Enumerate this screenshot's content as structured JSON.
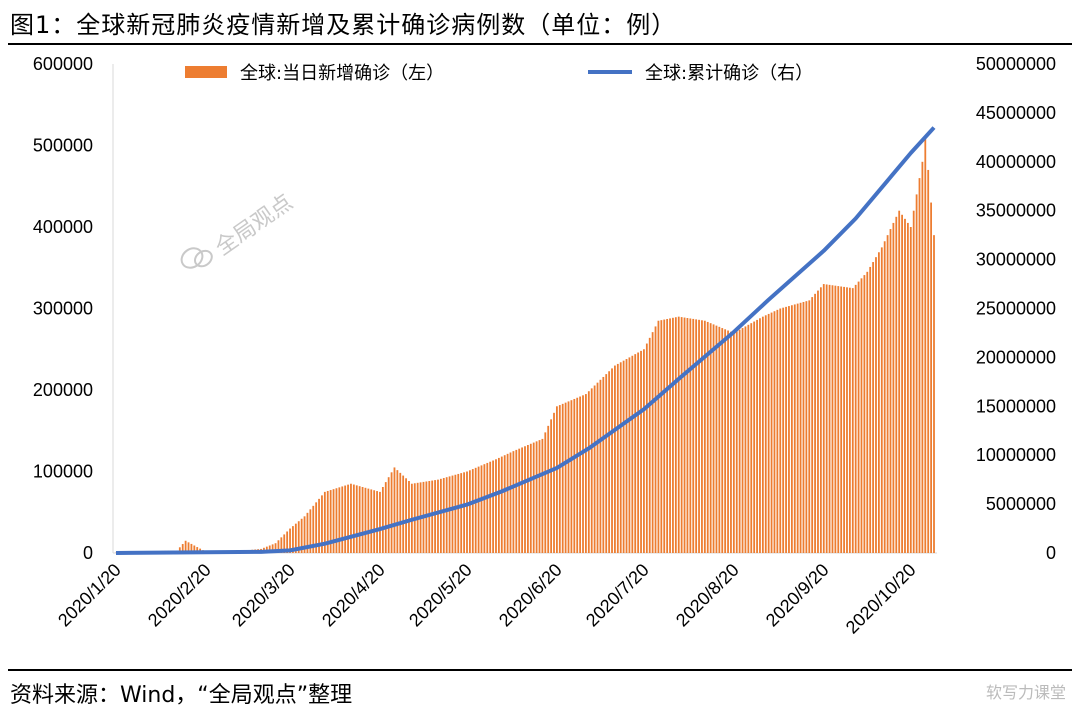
{
  "title": "图1：全球新冠肺炎疫情新增及累计确诊病例数（单位：例）",
  "source": "资料来源：Wind，“全局观点”整理",
  "watermark_center": "全局观点",
  "watermark_corner": "软写力课堂",
  "chart_data": {
    "type": "bar+line",
    "x_tick_labels": [
      "2020/1/20",
      "2020/2/20",
      "2020/3/20",
      "2020/4/20",
      "2020/5/20",
      "2020/6/20",
      "2020/7/20",
      "2020/8/20",
      "2020/9/20",
      "2020/10/20"
    ],
    "y_left": {
      "min": 0,
      "max": 600000,
      "ticks": [
        "0",
        "100000",
        "200000",
        "300000",
        "400000",
        "500000",
        "600000"
      ]
    },
    "y_right": {
      "min": 0,
      "max": 50000000,
      "ticks": [
        "0",
        "5000000",
        "10000000",
        "15000000",
        "20000000",
        "25000000",
        "30000000",
        "35000000",
        "40000000",
        "45000000",
        "50000000"
      ]
    },
    "x_range": [
      "2020-01-20",
      "2020-10-28"
    ],
    "series": [
      {
        "name": "全球:当日新增确诊（左）",
        "axis": "left",
        "kind": "bar",
        "color": "#ED7D31",
        "points": [
          [
            "2020-01-20",
            300
          ],
          [
            "2020-01-30",
            2000
          ],
          [
            "2020-02-10",
            3000
          ],
          [
            "2020-02-13",
            15000
          ],
          [
            "2020-02-20",
            1500
          ],
          [
            "2020-03-01",
            2000
          ],
          [
            "2020-03-10",
            5000
          ],
          [
            "2020-03-15",
            12000
          ],
          [
            "2020-03-20",
            30000
          ],
          [
            "2020-03-25",
            45000
          ],
          [
            "2020-04-01",
            75000
          ],
          [
            "2020-04-10",
            85000
          ],
          [
            "2020-04-20",
            75000
          ],
          [
            "2020-04-25",
            105000
          ],
          [
            "2020-05-01",
            85000
          ],
          [
            "2020-05-10",
            90000
          ],
          [
            "2020-05-20",
            100000
          ],
          [
            "2020-05-30",
            115000
          ],
          [
            "2020-06-05",
            125000
          ],
          [
            "2020-06-15",
            140000
          ],
          [
            "2020-06-20",
            180000
          ],
          [
            "2020-06-30",
            195000
          ],
          [
            "2020-07-10",
            230000
          ],
          [
            "2020-07-20",
            250000
          ],
          [
            "2020-07-25",
            285000
          ],
          [
            "2020-08-01",
            290000
          ],
          [
            "2020-08-10",
            285000
          ],
          [
            "2020-08-20",
            270000
          ],
          [
            "2020-08-30",
            290000
          ],
          [
            "2020-09-05",
            300000
          ],
          [
            "2020-09-15",
            310000
          ],
          [
            "2020-09-20",
            330000
          ],
          [
            "2020-09-30",
            325000
          ],
          [
            "2020-10-05",
            345000
          ],
          [
            "2020-10-10",
            375000
          ],
          [
            "2020-10-16",
            420000
          ],
          [
            "2020-10-20",
            400000
          ],
          [
            "2020-10-24",
            480000
          ],
          [
            "2020-10-25",
            510000
          ],
          [
            "2020-10-28",
            390000
          ]
        ]
      },
      {
        "name": "全球:累计确诊（右）",
        "axis": "right",
        "kind": "line",
        "color": "#4472C4",
        "points": [
          [
            "2020-01-20",
            300
          ],
          [
            "2020-02-20",
            76000
          ],
          [
            "2020-03-10",
            120000
          ],
          [
            "2020-03-20",
            270000
          ],
          [
            "2020-04-01",
            950000
          ],
          [
            "2020-04-20",
            2450000
          ],
          [
            "2020-05-01",
            3400000
          ],
          [
            "2020-05-20",
            4950000
          ],
          [
            "2020-06-01",
            6300000
          ],
          [
            "2020-06-20",
            8700000
          ],
          [
            "2020-07-01",
            10700000
          ],
          [
            "2020-07-20",
            14700000
          ],
          [
            "2020-08-01",
            17800000
          ],
          [
            "2020-08-20",
            22600000
          ],
          [
            "2020-09-01",
            25900000
          ],
          [
            "2020-09-20",
            30900000
          ],
          [
            "2020-10-01",
            34200000
          ],
          [
            "2020-10-20",
            40900000
          ],
          [
            "2020-10-28",
            43500000
          ]
        ]
      }
    ]
  }
}
